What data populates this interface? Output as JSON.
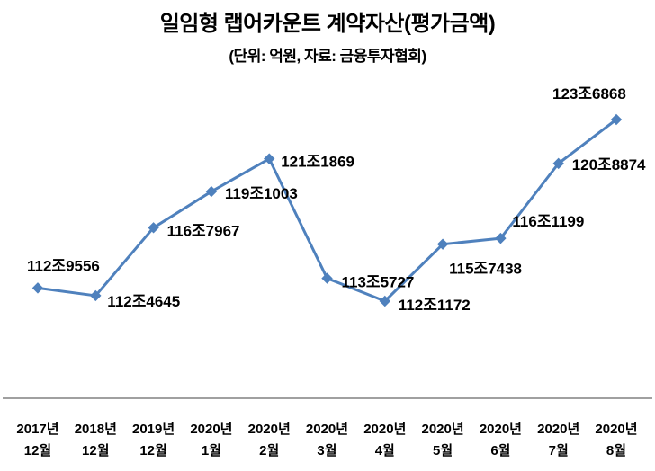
{
  "chart_data": {
    "type": "line",
    "title": "일임형 랩어카운트 계약자산(평가금액)",
    "subtitle": "(단위: 억원, 자료: 금융투자협회)",
    "unit": "억원",
    "source": "금융투자협회",
    "categories": [
      {
        "year": "2017년",
        "month": "12월"
      },
      {
        "year": "2018년",
        "month": "12월"
      },
      {
        "year": "2019년",
        "month": "12월"
      },
      {
        "year": "2020년",
        "month": "1월"
      },
      {
        "year": "2020년",
        "month": "2월"
      },
      {
        "year": "2020년",
        "month": "3월"
      },
      {
        "year": "2020년",
        "month": "4월"
      },
      {
        "year": "2020년",
        "month": "5월"
      },
      {
        "year": "2020년",
        "month": "6월"
      },
      {
        "year": "2020년",
        "month": "7월"
      },
      {
        "year": "2020년",
        "month": "8월"
      }
    ],
    "values": [
      1129556,
      1124645,
      1167967,
      1191003,
      1211869,
      1135727,
      1121172,
      1157438,
      1161199,
      1208874,
      1236868
    ],
    "point_labels": [
      "112조9556",
      "112조4645",
      "116조7967",
      "119조1003",
      "121조1869",
      "113조5727",
      "112조1172",
      "115조7438",
      "116조1199",
      "120조8874",
      "123조6868"
    ],
    "ylim": [
      1121172,
      1236868
    ],
    "xlabel": "",
    "ylabel": "",
    "grid": false,
    "legend_position": "none",
    "y_axis_visible": false,
    "marker": "diamond",
    "line_color": "#4f81bd",
    "marker_color": "#4f81bd",
    "axis_line_color": "#808080",
    "label_color": "#000000"
  }
}
